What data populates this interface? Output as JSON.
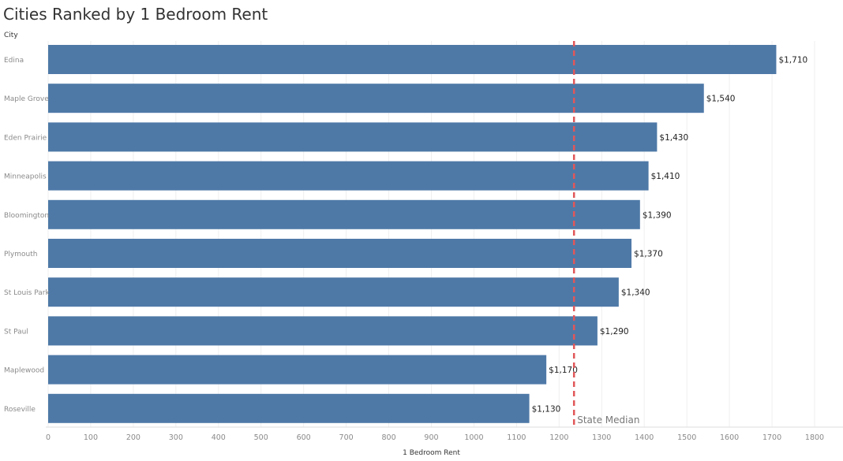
{
  "title": "Cities Ranked by 1 Bedroom Rent",
  "colors": {
    "bar": "#4e79a7",
    "median_line": "#e15759",
    "grid": "#efefef"
  },
  "chart_data": {
    "type": "bar",
    "orientation": "horizontal",
    "row_header": "City",
    "xlabel": "1 Bedroom Rent",
    "categories": [
      "Edina",
      "Maple Grove",
      "Eden Prairie",
      "Minneapolis",
      "Bloomington",
      "Plymouth",
      "St Louis Park",
      "St Paul",
      "Maplewood",
      "Roseville"
    ],
    "values": [
      1710,
      1540,
      1430,
      1410,
      1390,
      1370,
      1340,
      1290,
      1170,
      1130
    ],
    "value_labels": [
      "$1,710",
      "$1,540",
      "$1,430",
      "$1,410",
      "$1,390",
      "$1,370",
      "$1,340",
      "$1,290",
      "$1,170",
      "$1,130"
    ],
    "xlim": [
      0,
      1800
    ],
    "xticks": [
      0,
      100,
      200,
      300,
      400,
      500,
      600,
      700,
      800,
      900,
      1000,
      1100,
      1200,
      1300,
      1400,
      1500,
      1600,
      1700,
      1800
    ],
    "grid": true,
    "reference_line": {
      "label": "State Median",
      "value": 1235
    }
  }
}
